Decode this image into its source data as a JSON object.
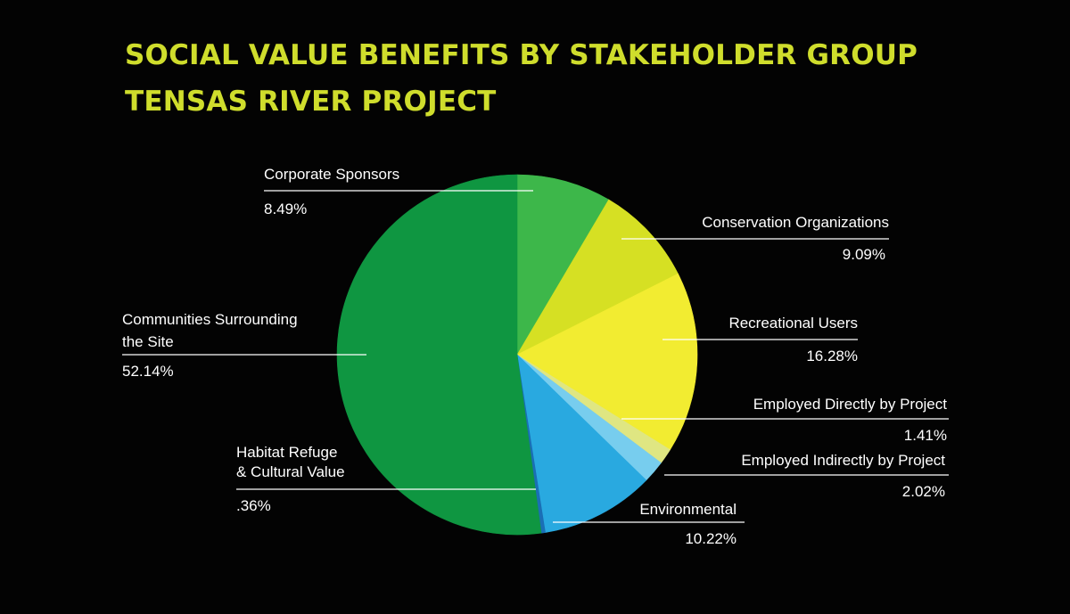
{
  "chart_data": {
    "type": "pie",
    "title_lines": [
      "SOCIAL VALUE BENEFITS BY STAKEHOLDER GROUP",
      "TENSAS RIVER PROJECT"
    ],
    "title_color": "#cfdd2c",
    "slices": [
      {
        "label_lines": [
          "Corporate Sponsors"
        ],
        "value": 8.49,
        "display": "8.49%",
        "color": "#3db74a"
      },
      {
        "label_lines": [
          "Conservation Organizations"
        ],
        "value": 9.09,
        "display": "9.09%",
        "color": "#d6e023"
      },
      {
        "label_lines": [
          "Recreational Users"
        ],
        "value": 16.28,
        "display": "16.28%",
        "color": "#f2ec31"
      },
      {
        "label_lines": [
          "Employed Directly by Project"
        ],
        "value": 1.41,
        "display": "1.41%",
        "color": "#dfe682"
      },
      {
        "label_lines": [
          "Employed Indirectly by Project"
        ],
        "value": 2.02,
        "display": "2.02%",
        "color": "#77cdee"
      },
      {
        "label_lines": [
          "Environmental"
        ],
        "value": 10.22,
        "display": "10.22%",
        "color": "#29a9e0"
      },
      {
        "label_lines": [
          "Habitat Refuge",
          "& Cultural Value"
        ],
        "value": 0.36,
        "display": ".36%",
        "color": "#1a6fb5"
      },
      {
        "label_lines": [
          "Communities Surrounding",
          "the Site"
        ],
        "value": 52.14,
        "display": "52.14%",
        "color": "#0f9641"
      }
    ],
    "start_angle_deg": 0,
    "direction": "clockwise",
    "label_color": "#ffffff",
    "leader_color": "#ffffff"
  }
}
